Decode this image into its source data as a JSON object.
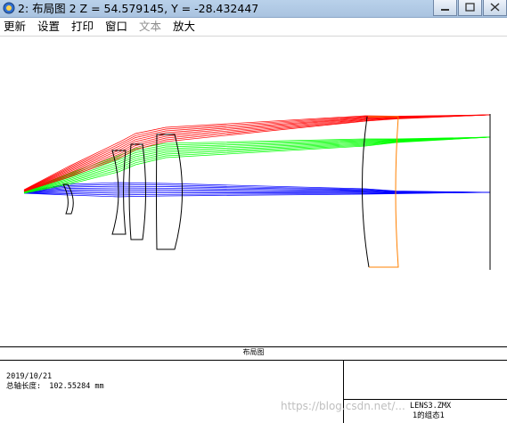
{
  "window": {
    "title": "2: 布局图 2 Z = 54.579145, Y = -28.432447",
    "minimize_icon": "minimize-icon",
    "maximize_icon": "maximize-icon",
    "close_icon": "close-icon"
  },
  "menu": {
    "items": [
      {
        "label": "更新",
        "enabled": true
      },
      {
        "label": "设置",
        "enabled": true
      },
      {
        "label": "打印",
        "enabled": true
      },
      {
        "label": "窗口",
        "enabled": true
      },
      {
        "label": "文本",
        "enabled": false
      },
      {
        "label": "放大",
        "enabled": true
      }
    ]
  },
  "layout_plot": {
    "panel_title": "布局图",
    "date": "2019/10/21",
    "total_length_label": "总轴长度:",
    "total_length_value": "102.55284 mm",
    "file_name": "LENS3.ZMX",
    "config_label": "1的组态1",
    "ray_colors": {
      "field_1": "#0000ff",
      "field_2": "#00ff00",
      "field_3": "#ff0000"
    },
    "lens_color": "#000000",
    "detector_color": "#ff8000"
  },
  "watermark": "https://blog.csdn.net/..."
}
